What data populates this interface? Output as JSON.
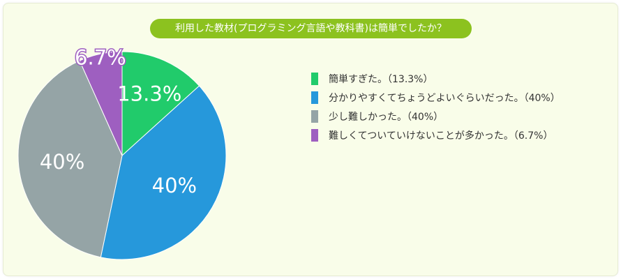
{
  "chart_data": {
    "type": "pie",
    "title": "利用した教材(プログラミング言語や教科書)は簡単でしたか？",
    "slices": [
      {
        "label": "簡単すぎた。",
        "legend": "簡単すぎた。（13.3%）",
        "value": 13.3,
        "data_label": "13.3%",
        "color": "#21cb6b"
      },
      {
        "label": "分かりやすくてちょうどよいぐらいだった。",
        "legend": "分かりやすくてちょうどよいぐらいだった。（40%）",
        "value": 40,
        "data_label": "40%",
        "color": "#2698db"
      },
      {
        "label": "少し難しかった。",
        "legend": "少し難しかった。（40%）",
        "value": 40,
        "data_label": "40%",
        "color": "#95a4a6"
      },
      {
        "label": "難しくてついていけないことが多かった。",
        "legend": "難しくてついていけないことが多かった。（6.7%）",
        "value": 6.7,
        "data_label": "6.7%",
        "color": "#9e5fc0"
      }
    ],
    "legend_position": "right"
  }
}
